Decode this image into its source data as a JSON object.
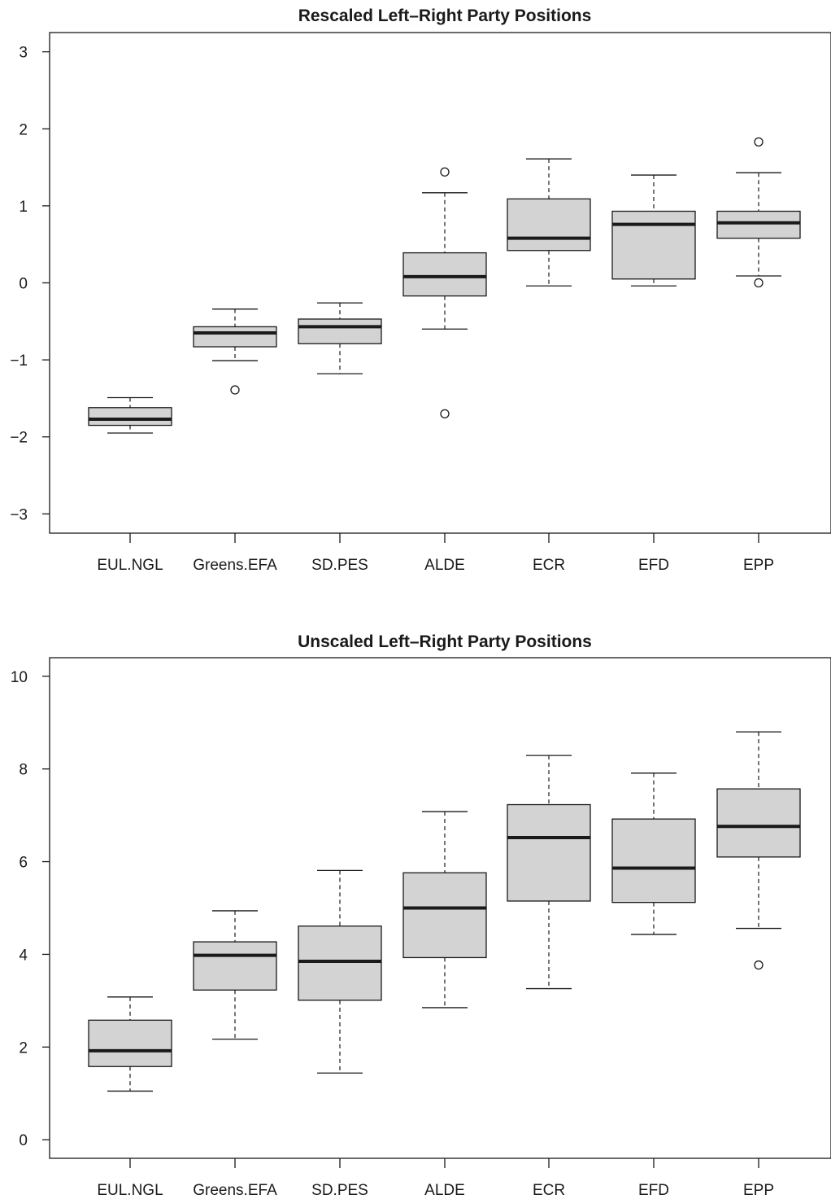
{
  "chart_data": [
    {
      "type": "boxplot",
      "title": "Rescaled Left–Right Party Positions",
      "xlabel": "",
      "ylabel": "",
      "ylim": [
        -3.25,
        3.25
      ],
      "yticks": [
        -3,
        -2,
        -1,
        0,
        1,
        2,
        3
      ],
      "ytick_labels": [
        "−3",
        "−2",
        "−1",
        "0",
        "1",
        "2",
        "3"
      ],
      "categories": [
        "EUL.NGL",
        "Greens.EFA",
        "SD.PES",
        "ALDE",
        "ECR",
        "EFD",
        "EPP"
      ],
      "boxes": [
        {
          "category": "EUL.NGL",
          "whisker_low": -1.95,
          "q1": -1.85,
          "median": -1.77,
          "q3": -1.62,
          "whisker_high": -1.49,
          "outliers": []
        },
        {
          "category": "Greens.EFA",
          "whisker_low": -1.01,
          "q1": -0.83,
          "median": -0.65,
          "q3": -0.57,
          "whisker_high": -0.34,
          "outliers": [
            -1.39
          ]
        },
        {
          "category": "SD.PES",
          "whisker_low": -1.18,
          "q1": -0.79,
          "median": -0.57,
          "q3": -0.47,
          "whisker_high": -0.26,
          "outliers": []
        },
        {
          "category": "ALDE",
          "whisker_low": -0.6,
          "q1": -0.17,
          "median": 0.08,
          "q3": 0.39,
          "whisker_high": 1.17,
          "outliers": [
            1.44,
            -1.7
          ]
        },
        {
          "category": "ECR",
          "whisker_low": -0.04,
          "q1": 0.42,
          "median": 0.58,
          "q3": 1.09,
          "whisker_high": 1.61,
          "outliers": []
        },
        {
          "category": "EFD",
          "whisker_low": -0.04,
          "q1": 0.05,
          "median": 0.76,
          "q3": 0.93,
          "whisker_high": 1.4,
          "outliers": []
        },
        {
          "category": "EPP",
          "whisker_low": 0.09,
          "q1": 0.58,
          "median": 0.78,
          "q3": 0.93,
          "whisker_high": 1.43,
          "outliers": [
            1.83,
            0.0
          ]
        }
      ]
    },
    {
      "type": "boxplot",
      "title": "Unscaled Left–Right Party Positions",
      "xlabel": "",
      "ylabel": "",
      "ylim": [
        -0.4,
        10.4
      ],
      "yticks": [
        0,
        2,
        4,
        6,
        8,
        10
      ],
      "ytick_labels": [
        "0",
        "2",
        "4",
        "6",
        "8",
        "10"
      ],
      "categories": [
        "EUL.NGL",
        "Greens.EFA",
        "SD.PES",
        "ALDE",
        "ECR",
        "EFD",
        "EPP"
      ],
      "boxes": [
        {
          "category": "EUL.NGL",
          "whisker_low": 1.05,
          "q1": 1.58,
          "median": 1.92,
          "q3": 2.58,
          "whisker_high": 3.08,
          "outliers": []
        },
        {
          "category": "Greens.EFA",
          "whisker_low": 2.17,
          "q1": 3.23,
          "median": 3.98,
          "q3": 4.27,
          "whisker_high": 4.94,
          "outliers": []
        },
        {
          "category": "SD.PES",
          "whisker_low": 1.44,
          "q1": 3.01,
          "median": 3.85,
          "q3": 4.61,
          "whisker_high": 5.81,
          "outliers": []
        },
        {
          "category": "ALDE",
          "whisker_low": 2.85,
          "q1": 3.93,
          "median": 5.0,
          "q3": 5.76,
          "whisker_high": 7.08,
          "outliers": []
        },
        {
          "category": "ECR",
          "whisker_low": 3.26,
          "q1": 5.15,
          "median": 6.52,
          "q3": 7.23,
          "whisker_high": 8.29,
          "outliers": []
        },
        {
          "category": "EFD",
          "whisker_low": 4.43,
          "q1": 5.12,
          "median": 5.86,
          "q3": 6.92,
          "whisker_high": 7.91,
          "outliers": []
        },
        {
          "category": "EPP",
          "whisker_low": 4.56,
          "q1": 6.1,
          "median": 6.76,
          "q3": 7.57,
          "whisker_high": 8.8,
          "outliers": [
            3.77
          ]
        }
      ]
    }
  ],
  "colors": {
    "box_fill": "#d3d3d3",
    "stroke": "#1a1a1a",
    "background": "#ffffff"
  }
}
